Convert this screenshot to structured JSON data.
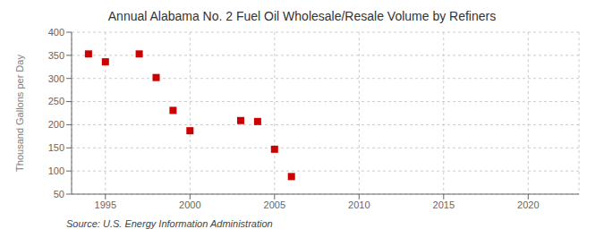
{
  "chart_data": {
    "type": "scatter",
    "title": "Annual Alabama No. 2 Fuel Oil Wholesale/Resale Volume by Refiners",
    "ylabel": "Thousand Gallons per Day",
    "annotation": "Source: U.S. Energy Information Administration",
    "x": [
      1994,
      1995,
      1997,
      1998,
      1999,
      2000,
      2003,
      2004,
      2005,
      2006
    ],
    "values": [
      353,
      336,
      353,
      302,
      231,
      187,
      209,
      207,
      147,
      88
    ],
    "color": "#cc0000",
    "marker": "square",
    "xlim": [
      1993,
      2023
    ],
    "ylim": [
      50,
      400
    ],
    "xticks": [
      1995,
      2000,
      2005,
      2010,
      2015,
      2020
    ],
    "yticks": [
      50,
      100,
      150,
      200,
      250,
      300,
      350,
      400
    ],
    "grid": true
  }
}
